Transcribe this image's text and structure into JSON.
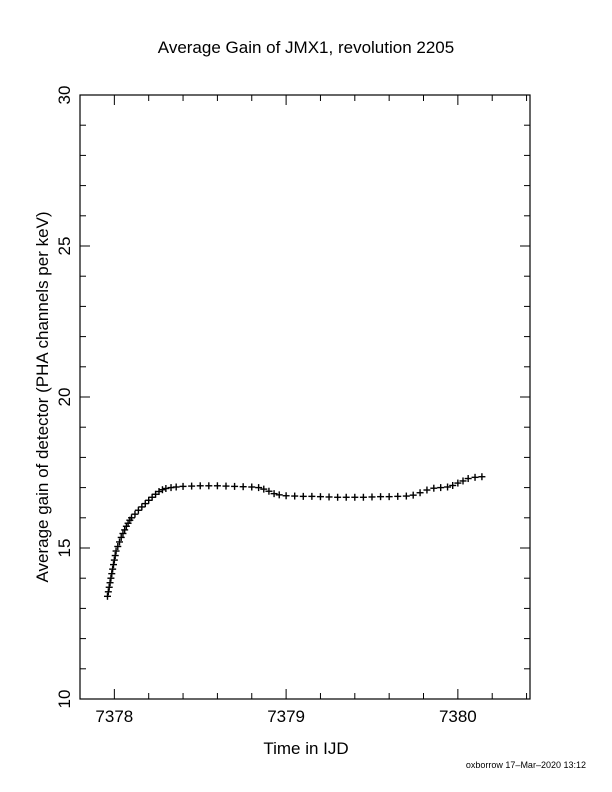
{
  "chart_data": {
    "type": "scatter",
    "title": "Average Gain of JMX1, revolution 2205",
    "xlabel": "Time in IJD",
    "ylabel": "Average gain of detector (PHA channels per keV)",
    "xlim": [
      7377.8,
      7380.42
    ],
    "ylim": [
      10,
      30
    ],
    "x_ticks": [
      7378,
      7379,
      7380
    ],
    "y_ticks": [
      10,
      15,
      20,
      25,
      30
    ],
    "x_tick_labels": [
      "7378",
      "7379",
      "7380"
    ],
    "y_tick_labels": [
      "10",
      "15",
      "20",
      "25",
      "30"
    ],
    "x_minor_step": 0.2,
    "y_minor_step": 1,
    "grid": false,
    "marker": "+",
    "series": [
      {
        "points": [
          [
            7377.96,
            13.4
          ],
          [
            7377.965,
            13.55
          ],
          [
            7377.97,
            13.7
          ],
          [
            7377.975,
            13.85
          ],
          [
            7377.98,
            14.0
          ],
          [
            7377.985,
            14.15
          ],
          [
            7377.99,
            14.3
          ],
          [
            7377.995,
            14.45
          ],
          [
            7378.0,
            14.6
          ],
          [
            7378.005,
            14.75
          ],
          [
            7378.01,
            14.9
          ],
          [
            7378.02,
            15.05
          ],
          [
            7378.03,
            15.2
          ],
          [
            7378.04,
            15.35
          ],
          [
            7378.05,
            15.48
          ],
          [
            7378.06,
            15.6
          ],
          [
            7378.07,
            15.72
          ],
          [
            7378.08,
            15.82
          ],
          [
            7378.09,
            15.92
          ],
          [
            7378.1,
            16.0
          ],
          [
            7378.12,
            16.12
          ],
          [
            7378.14,
            16.25
          ],
          [
            7378.16,
            16.36
          ],
          [
            7378.18,
            16.47
          ],
          [
            7378.2,
            16.58
          ],
          [
            7378.22,
            16.68
          ],
          [
            7378.24,
            16.78
          ],
          [
            7378.26,
            16.87
          ],
          [
            7378.28,
            16.93
          ],
          [
            7378.3,
            16.97
          ],
          [
            7378.33,
            17.0
          ],
          [
            7378.36,
            17.02
          ],
          [
            7378.4,
            17.04
          ],
          [
            7378.45,
            17.05
          ],
          [
            7378.5,
            17.06
          ],
          [
            7378.55,
            17.06
          ],
          [
            7378.6,
            17.06
          ],
          [
            7378.65,
            17.05
          ],
          [
            7378.7,
            17.04
          ],
          [
            7378.75,
            17.03
          ],
          [
            7378.8,
            17.02
          ],
          [
            7378.84,
            17.0
          ],
          [
            7378.87,
            16.95
          ],
          [
            7378.9,
            16.88
          ],
          [
            7378.93,
            16.8
          ],
          [
            7378.96,
            16.76
          ],
          [
            7379.0,
            16.73
          ],
          [
            7379.05,
            16.72
          ],
          [
            7379.1,
            16.71
          ],
          [
            7379.15,
            16.71
          ],
          [
            7379.2,
            16.7
          ],
          [
            7379.25,
            16.69
          ],
          [
            7379.3,
            16.68
          ],
          [
            7379.35,
            16.68
          ],
          [
            7379.4,
            16.68
          ],
          [
            7379.45,
            16.68
          ],
          [
            7379.5,
            16.69
          ],
          [
            7379.55,
            16.7
          ],
          [
            7379.6,
            16.7
          ],
          [
            7379.65,
            16.71
          ],
          [
            7379.7,
            16.72
          ],
          [
            7379.74,
            16.75
          ],
          [
            7379.78,
            16.83
          ],
          [
            7379.82,
            16.92
          ],
          [
            7379.86,
            16.98
          ],
          [
            7379.9,
            17.0
          ],
          [
            7379.94,
            17.02
          ],
          [
            7379.97,
            17.07
          ],
          [
            7380.0,
            17.15
          ],
          [
            7380.03,
            17.22
          ],
          [
            7380.06,
            17.3
          ],
          [
            7380.1,
            17.34
          ],
          [
            7380.14,
            17.36
          ]
        ]
      }
    ]
  },
  "footer": {
    "credit": "oxborrow 17–Mar–2020 13:12"
  }
}
